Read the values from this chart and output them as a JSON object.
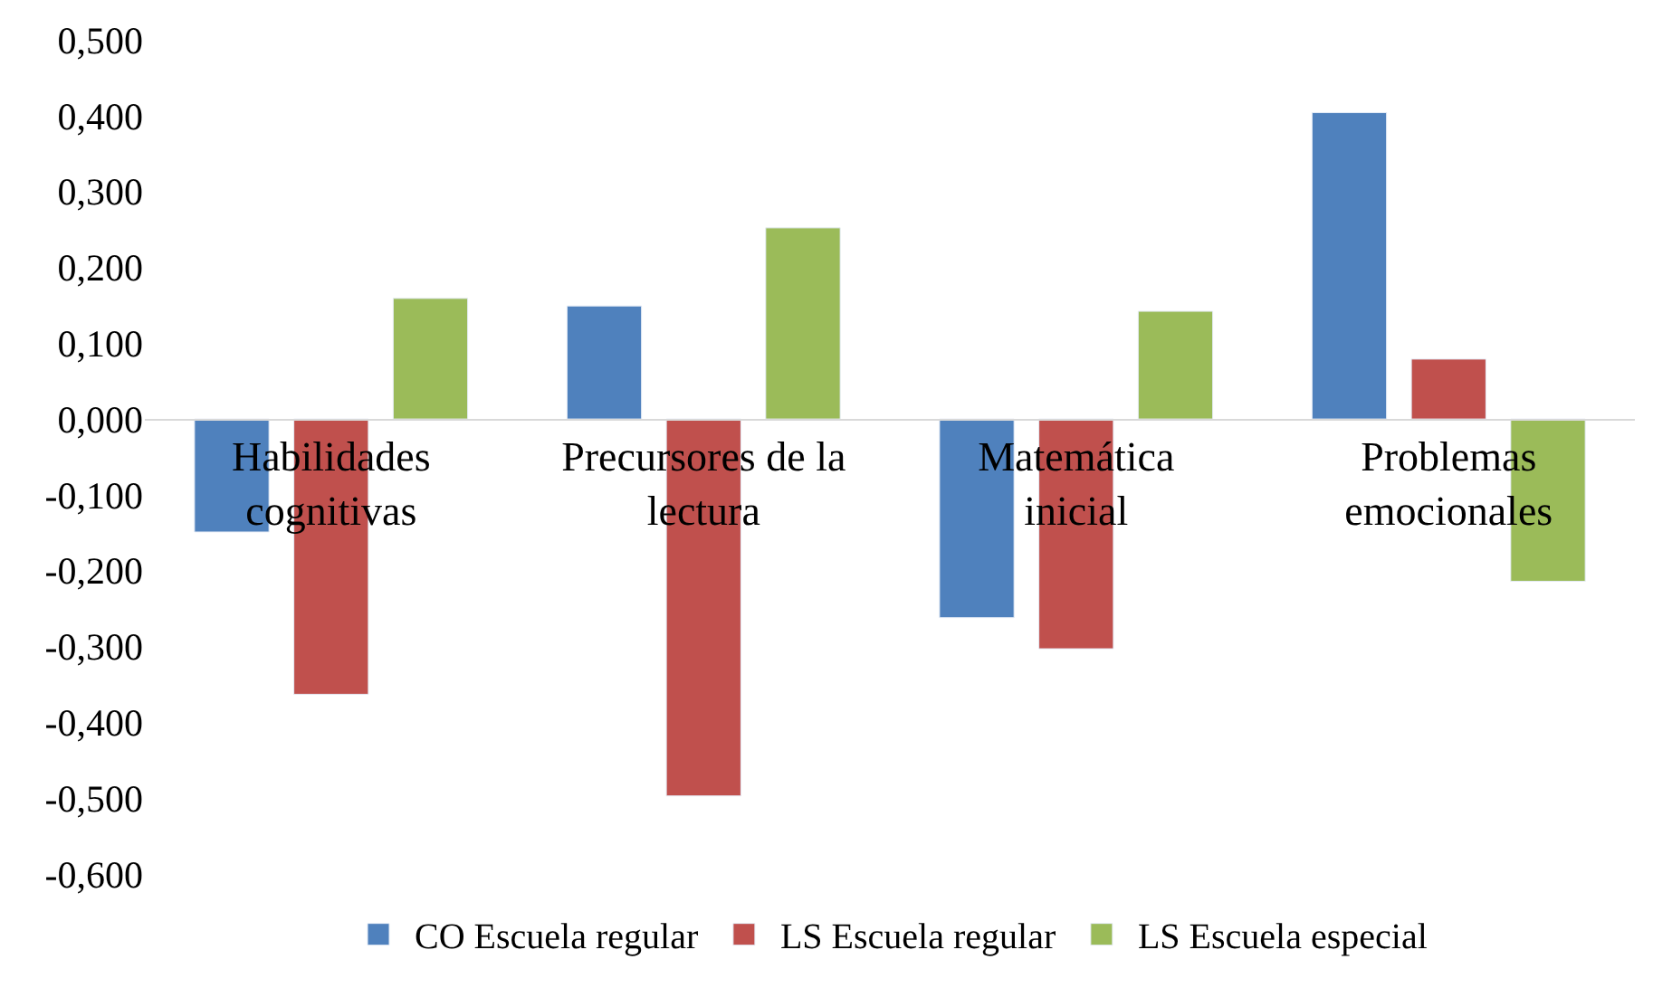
{
  "chart_data": {
    "type": "bar",
    "categories": [
      "Habilidades cognitivas",
      "Precursores de la lectura",
      "Matemática inicial",
      "Problemas emocionales"
    ],
    "series": [
      {
        "name": "CO Escuela regular",
        "color": "#4f81bd",
        "values": [
          -0.149,
          0.149,
          -0.262,
          0.404
        ]
      },
      {
        "name": "LS Escuela regular",
        "color": "#c0504d",
        "values": [
          -0.363,
          -0.497,
          -0.303,
          0.079
        ]
      },
      {
        "name": "LS Escuela especial",
        "color": "#9bbb59",
        "values": [
          0.159,
          0.252,
          0.142,
          -0.214
        ]
      }
    ],
    "ylim": [
      -0.6,
      0.5
    ],
    "yticks": [
      {
        "value": -0.6,
        "label": "-0,600"
      },
      {
        "value": -0.5,
        "label": "-0,500"
      },
      {
        "value": -0.4,
        "label": "-0,400"
      },
      {
        "value": -0.3,
        "label": "-0,300"
      },
      {
        "value": -0.2,
        "label": "-0,200"
      },
      {
        "value": -0.1,
        "label": "-0,100"
      },
      {
        "value": 0,
        "label": "0,000"
      },
      {
        "value": 0.1,
        "label": "0,100"
      },
      {
        "value": 0.2,
        "label": "0,200"
      },
      {
        "value": 0.3,
        "label": "0,300"
      },
      {
        "value": 0.4,
        "label": "0,400"
      },
      {
        "value": 0.5,
        "label": "0,500"
      }
    ],
    "grid": false,
    "legend": "bottom"
  }
}
